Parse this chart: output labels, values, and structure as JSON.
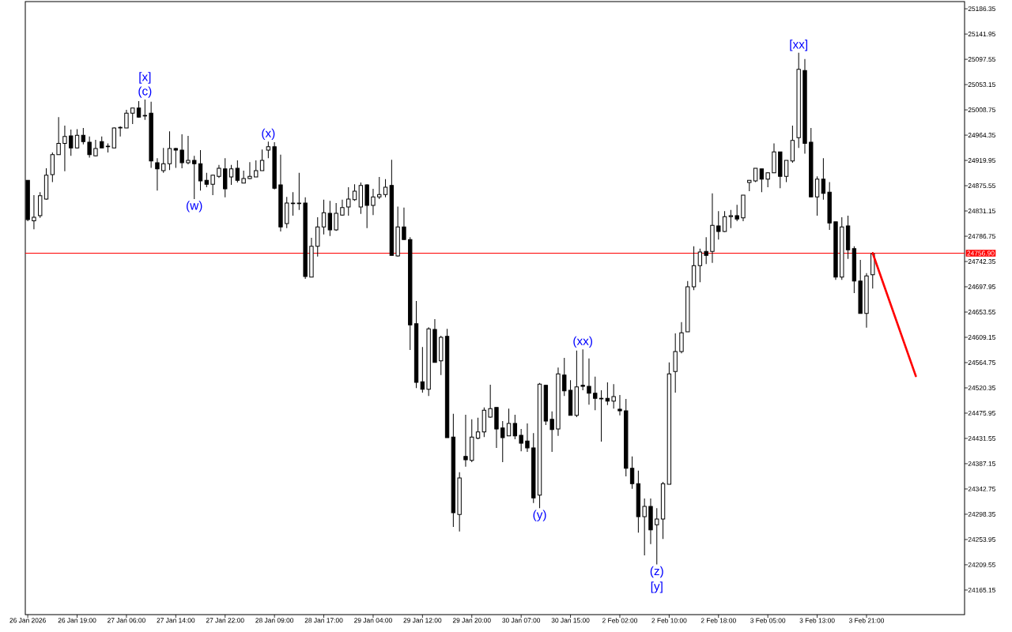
{
  "chart_data": {
    "type": "candlestick",
    "categories": [
      "26 Jan 2026",
      null,
      null,
      null,
      null,
      null,
      null,
      null,
      "26 Jan 19:00",
      null,
      null,
      null,
      null,
      null,
      null,
      null,
      "27 Jan 06:00",
      null,
      null,
      null,
      null,
      null,
      null,
      null,
      "27 Jan 14:00",
      null,
      null,
      null,
      null,
      null,
      null,
      null,
      "27 Jan 22:00",
      null,
      null,
      null,
      null,
      null,
      null,
      null,
      "28 Jan 09:00",
      null,
      null,
      null,
      null,
      null,
      null,
      null,
      "28 Jan 17:00",
      null,
      null,
      null,
      null,
      null,
      null,
      null,
      "29 Jan 04:00",
      null,
      null,
      null,
      null,
      null,
      null,
      null,
      "29 Jan 12:00",
      null,
      null,
      null,
      null,
      null,
      null,
      null,
      "29 Jan 20:00",
      null,
      null,
      null,
      null,
      null,
      null,
      null,
      "30 Jan 07:00",
      null,
      null,
      null,
      null,
      null,
      null,
      null,
      "30 Jan 15:00",
      null,
      null,
      null,
      null,
      null,
      null,
      null,
      "2 Feb 02:00",
      null,
      null,
      null,
      null,
      null,
      null,
      null,
      "2 Feb 10:00",
      null,
      null,
      null,
      null,
      null,
      null,
      null,
      "2 Feb 18:00",
      null,
      null,
      null,
      null,
      null,
      null,
      null,
      "3 Feb 05:00",
      null,
      null,
      null,
      null,
      null,
      null,
      null,
      "3 Feb 13:00",
      null,
      null,
      null,
      null,
      null,
      null,
      null,
      "3 Feb 21:00",
      null,
      null,
      null,
      null,
      null,
      null,
      null,
      null,
      null,
      null,
      null,
      null,
      null,
      null,
      null
    ],
    "ohlc": [
      [
        24885,
        24885,
        24813,
        24816
      ],
      [
        24814,
        24859,
        24799,
        24820
      ],
      [
        24823,
        24864,
        24819,
        24858
      ],
      [
        24852,
        24906,
        24851,
        24894
      ],
      [
        24895,
        24934,
        24882,
        24930
      ],
      [
        24930,
        24996,
        24930,
        24950
      ],
      [
        24950,
        24981,
        24901,
        24962
      ],
      [
        24963,
        24974,
        24928,
        24942
      ],
      [
        24942,
        24975,
        24941,
        24964
      ],
      [
        24964,
        24977,
        24948,
        24953
      ],
      [
        24952,
        24962,
        24925,
        24930
      ],
      [
        24928,
        24956,
        24927,
        24941
      ],
      [
        24953,
        24962,
        24942,
        24942
      ],
      [
        24944,
        24950,
        24934,
        24945
      ],
      [
        24942,
        24978,
        24942,
        24977
      ],
      [
        24977,
        24980,
        24962,
        24978
      ],
      [
        24977,
        25009,
        24977,
        25003
      ],
      [
        25003,
        25012,
        24984,
        25012
      ],
      [
        25012,
        25024,
        24995,
        24996
      ],
      [
        24998,
        25027,
        24991,
        24999
      ],
      [
        25003,
        25023,
        24907,
        24919
      ],
      [
        24916,
        24924,
        24867,
        24905
      ],
      [
        24902,
        24942,
        24898,
        24914
      ],
      [
        24914,
        24971,
        24903,
        24941
      ],
      [
        24941,
        24942,
        24907,
        24938
      ],
      [
        24938,
        24966,
        24906,
        24916
      ],
      [
        24916,
        24963,
        24913,
        24920
      ],
      [
        24920,
        24928,
        24852,
        24914
      ],
      [
        24914,
        24938,
        24867,
        24884
      ],
      [
        24885,
        24898,
        24873,
        24878
      ],
      [
        24878,
        24895,
        24859,
        24894
      ],
      [
        24892,
        24912,
        24889,
        24906
      ],
      [
        24905,
        24924,
        24855,
        24870
      ],
      [
        24891,
        24912,
        24877,
        24905
      ],
      [
        24906,
        24920,
        24881,
        24885
      ],
      [
        24880,
        24902,
        24880,
        24888
      ],
      [
        24888,
        24917,
        24887,
        24892
      ],
      [
        24891,
        24920,
        24891,
        24902
      ],
      [
        24902,
        24939,
        24902,
        24920
      ],
      [
        24938,
        24953,
        24924,
        24944
      ],
      [
        24944,
        24952,
        24869,
        24871
      ],
      [
        24877,
        24930,
        24795,
        24803
      ],
      [
        24809,
        24856,
        24801,
        24845
      ],
      [
        24844,
        24864,
        24823,
        24845
      ],
      [
        24845,
        24898,
        24833,
        24844
      ],
      [
        24845,
        24855,
        24712,
        24716
      ],
      [
        24715,
        24784,
        24715,
        24769
      ],
      [
        24769,
        24820,
        24751,
        24803
      ],
      [
        24803,
        24851,
        24790,
        24828
      ],
      [
        24827,
        24849,
        24787,
        24798
      ],
      [
        24798,
        24845,
        24796,
        24827
      ],
      [
        24824,
        24851,
        24823,
        24837
      ],
      [
        24838,
        24873,
        24823,
        24852
      ],
      [
        24851,
        24878,
        24849,
        24866
      ],
      [
        24838,
        24881,
        24826,
        24876
      ],
      [
        24877,
        24878,
        24801,
        24841
      ],
      [
        24841,
        24870,
        24824,
        24856
      ],
      [
        24856,
        24891,
        24852,
        24860
      ],
      [
        24860,
        24887,
        24855,
        24873
      ],
      [
        24876,
        24921,
        24753,
        24753
      ],
      [
        24752,
        24839,
        24751,
        24803
      ],
      [
        24803,
        24837,
        24781,
        24781
      ],
      [
        24781,
        24785,
        24587,
        24631
      ],
      [
        24633,
        24673,
        24520,
        24530
      ],
      [
        24531,
        24592,
        24512,
        24518
      ],
      [
        24518,
        24627,
        24506,
        24624
      ],
      [
        24623,
        24641,
        24565,
        24565
      ],
      [
        24568,
        24612,
        24543,
        24609
      ],
      [
        24611,
        24624,
        24433,
        24433
      ],
      [
        24434,
        24475,
        24276,
        24301
      ],
      [
        24298,
        24372,
        24268,
        24362
      ],
      [
        24400,
        24473,
        24382,
        24394
      ],
      [
        24393,
        24465,
        24390,
        24434
      ],
      [
        24432,
        24468,
        24430,
        24443
      ],
      [
        24443,
        24486,
        24434,
        24481
      ],
      [
        24469,
        24526,
        24468,
        24484
      ],
      [
        24486,
        24486,
        24415,
        24448
      ],
      [
        24450,
        24462,
        24390,
        24433
      ],
      [
        24436,
        24484,
        24436,
        24458
      ],
      [
        24458,
        24473,
        24430,
        24436
      ],
      [
        24437,
        24448,
        24409,
        24423
      ],
      [
        24427,
        24458,
        24408,
        24415
      ],
      [
        24415,
        24441,
        24318,
        24327
      ],
      [
        24332,
        24529,
        24309,
        24527
      ],
      [
        24525,
        24526,
        24455,
        24462
      ],
      [
        24465,
        24479,
        24408,
        24447
      ],
      [
        24448,
        24556,
        24436,
        24545
      ],
      [
        24543,
        24573,
        24506,
        24515
      ],
      [
        24516,
        24534,
        24472,
        24472
      ],
      [
        24472,
        24586,
        24469,
        24522
      ],
      [
        24525,
        24588,
        24516,
        24523
      ],
      [
        24523,
        24572,
        24491,
        24511
      ],
      [
        24511,
        24540,
        24481,
        24502
      ],
      [
        24502,
        24516,
        24426,
        24501
      ],
      [
        24502,
        24530,
        24490,
        24497
      ],
      [
        24497,
        24527,
        24484,
        24505
      ],
      [
        24483,
        24508,
        24472,
        24480
      ],
      [
        24480,
        24501,
        24365,
        24379
      ],
      [
        24379,
        24400,
        24343,
        24352
      ],
      [
        24352,
        24375,
        24266,
        24294
      ],
      [
        24294,
        24326,
        24226,
        24312
      ],
      [
        24312,
        24326,
        24246,
        24271
      ],
      [
        24280,
        24309,
        24210,
        24290
      ],
      [
        24290,
        24355,
        24255,
        24352
      ],
      [
        24351,
        24565,
        24351,
        24545
      ],
      [
        24549,
        24616,
        24512,
        24584
      ],
      [
        24584,
        24636,
        24581,
        24617
      ],
      [
        24619,
        24708,
        24619,
        24698
      ],
      [
        24698,
        24769,
        24692,
        24735
      ],
      [
        24735,
        24765,
        24706,
        24759
      ],
      [
        24760,
        24785,
        24738,
        24753
      ],
      [
        24760,
        24862,
        24740,
        24806
      ],
      [
        24805,
        24831,
        24781,
        24795
      ],
      [
        24795,
        24831,
        24794,
        24821
      ],
      [
        24821,
        24833,
        24801,
        24823
      ],
      [
        24823,
        24842,
        24813,
        24817
      ],
      [
        24819,
        24859,
        24813,
        24859
      ],
      [
        24881,
        24885,
        24866,
        24885
      ],
      [
        24884,
        24906,
        24882,
        24906
      ],
      [
        24905,
        24905,
        24864,
        24887
      ],
      [
        24887,
        24899,
        24873,
        24898
      ],
      [
        24898,
        24950,
        24898,
        24935
      ],
      [
        24935,
        24935,
        24871,
        24892
      ],
      [
        24892,
        24920,
        24882,
        24920
      ],
      [
        24919,
        24981,
        24916,
        24955
      ],
      [
        24960,
        25109,
        24942,
        25080
      ],
      [
        25078,
        25098,
        24932,
        24950
      ],
      [
        24952,
        24977,
        24856,
        24856
      ],
      [
        24856,
        24892,
        24823,
        24887
      ],
      [
        24887,
        24924,
        24851,
        24862
      ],
      [
        24864,
        24882,
        24798,
        24810
      ],
      [
        24812,
        24812,
        24710,
        24715
      ],
      [
        24715,
        24820,
        24710,
        24803
      ],
      [
        24805,
        24823,
        24747,
        24763
      ],
      [
        24765,
        24769,
        24687,
        24708
      ],
      [
        24708,
        24745,
        24651,
        24651
      ],
      [
        24651,
        24722,
        24626,
        24717
      ],
      [
        24719,
        24759,
        24695,
        24756
      ],
      null,
      null,
      null,
      null,
      null,
      null,
      null,
      null,
      null,
      null,
      null,
      null,
      null,
      null
    ],
    "series": [
      {
        "type": "line",
        "color": "#ff0000",
        "values": [
          null,
          null,
          null,
          null,
          null,
          null,
          null,
          null,
          null,
          null,
          null,
          null,
          null,
          null,
          null,
          null,
          null,
          null,
          null,
          null,
          null,
          null,
          null,
          null,
          null,
          null,
          null,
          null,
          null,
          null,
          null,
          null,
          null,
          null,
          null,
          null,
          null,
          null,
          null,
          null,
          null,
          null,
          null,
          null,
          null,
          null,
          null,
          null,
          null,
          null,
          null,
          null,
          null,
          null,
          null,
          null,
          null,
          null,
          null,
          null,
          null,
          null,
          null,
          null,
          null,
          null,
          null,
          null,
          null,
          null,
          null,
          null,
          null,
          null,
          null,
          null,
          null,
          null,
          null,
          null,
          null,
          null,
          null,
          null,
          null,
          null,
          null,
          null,
          null,
          null,
          null,
          null,
          null,
          null,
          null,
          null,
          null,
          null,
          null,
          null,
          null,
          null,
          null,
          null,
          null,
          null,
          null,
          null,
          null,
          null,
          null,
          null,
          null,
          null,
          null,
          null,
          null,
          null,
          null,
          null,
          null,
          null,
          null,
          null,
          null,
          null,
          null,
          null,
          null,
          null,
          null,
          null,
          null,
          null,
          null,
          null,
          null,
          24757,
          null,
          null,
          null,
          null,
          null,
          null,
          24541,
          null,
          null,
          null,
          null,
          null,
          null,
          null
        ]
      }
    ],
    "ref_lines": [
      {
        "axis": "y",
        "value": 24756.9,
        "label": "24756.90",
        "color": "#ff0000"
      }
    ],
    "annotations": [
      "[x]",
      "(c)",
      "(w)",
      "(x)",
      "(y)",
      "(xx)",
      "(z)",
      "[y]",
      "[xx]"
    ],
    "ylim": [
      24122,
      25199
    ],
    "yticks": [
      24165.15,
      24209.55,
      24253.95,
      24298.35,
      24342.75,
      24387.15,
      24431.55,
      24475.95,
      24520.35,
      24564.75,
      24609.15,
      24653.55,
      24697.95,
      24742.35,
      24786.75,
      24831.15,
      24875.55,
      24919.95,
      24964.35,
      25008.75,
      25053.15,
      25097.55,
      25141.95,
      25186.35
    ]
  }
}
